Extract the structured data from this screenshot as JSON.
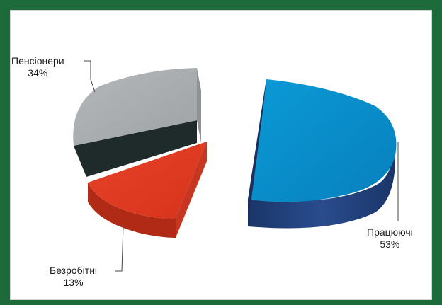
{
  "chart_data": {
    "type": "pie",
    "variant": "3d-exploded",
    "slices": [
      {
        "label": "Працюючі",
        "value": 53,
        "value_label": "53%",
        "color": "#0a8fc8",
        "side_color": "#1e3c72"
      },
      {
        "label": "Безробітні",
        "value": 13,
        "value_label": "13%",
        "color": "#e03b22",
        "side_color": "#b82814"
      },
      {
        "label": "Пенсіонери",
        "value": 34,
        "value_label": "34%",
        "color": "#a9adb0",
        "side_color": "#1e2a2a"
      }
    ],
    "legend": "none",
    "data_labels": "outside-with-leader-lines"
  },
  "colors": {
    "frame": "#1d6a3b",
    "panel": "#ffffff"
  }
}
